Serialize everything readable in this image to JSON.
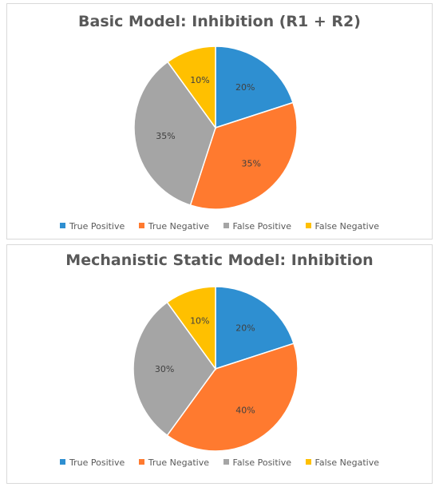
{
  "chart_data": [
    {
      "type": "pie",
      "title": "Basic Model: Inhibition (R1 + R2)",
      "categories": [
        "True Positive",
        "True Negative",
        "False Positive",
        "False Negative"
      ],
      "values": [
        20,
        35,
        35,
        10
      ],
      "labels": [
        "20%",
        "35%",
        "35%",
        "10%"
      ],
      "colors": [
        "#2E8FD1",
        "#FF7A2F",
        "#A5A5A5",
        "#FFC000"
      ],
      "legend": "bottom"
    },
    {
      "type": "pie",
      "title": "Mechanistic Static Model: Inhibition",
      "categories": [
        "True Positive",
        "True Negative",
        "False Positive",
        "False Negative"
      ],
      "values": [
        20,
        40,
        30,
        10
      ],
      "labels": [
        "20%",
        "40%",
        "30%",
        "10%"
      ],
      "colors": [
        "#2E8FD1",
        "#FF7A2F",
        "#A5A5A5",
        "#FFC000"
      ],
      "legend": "bottom"
    }
  ]
}
